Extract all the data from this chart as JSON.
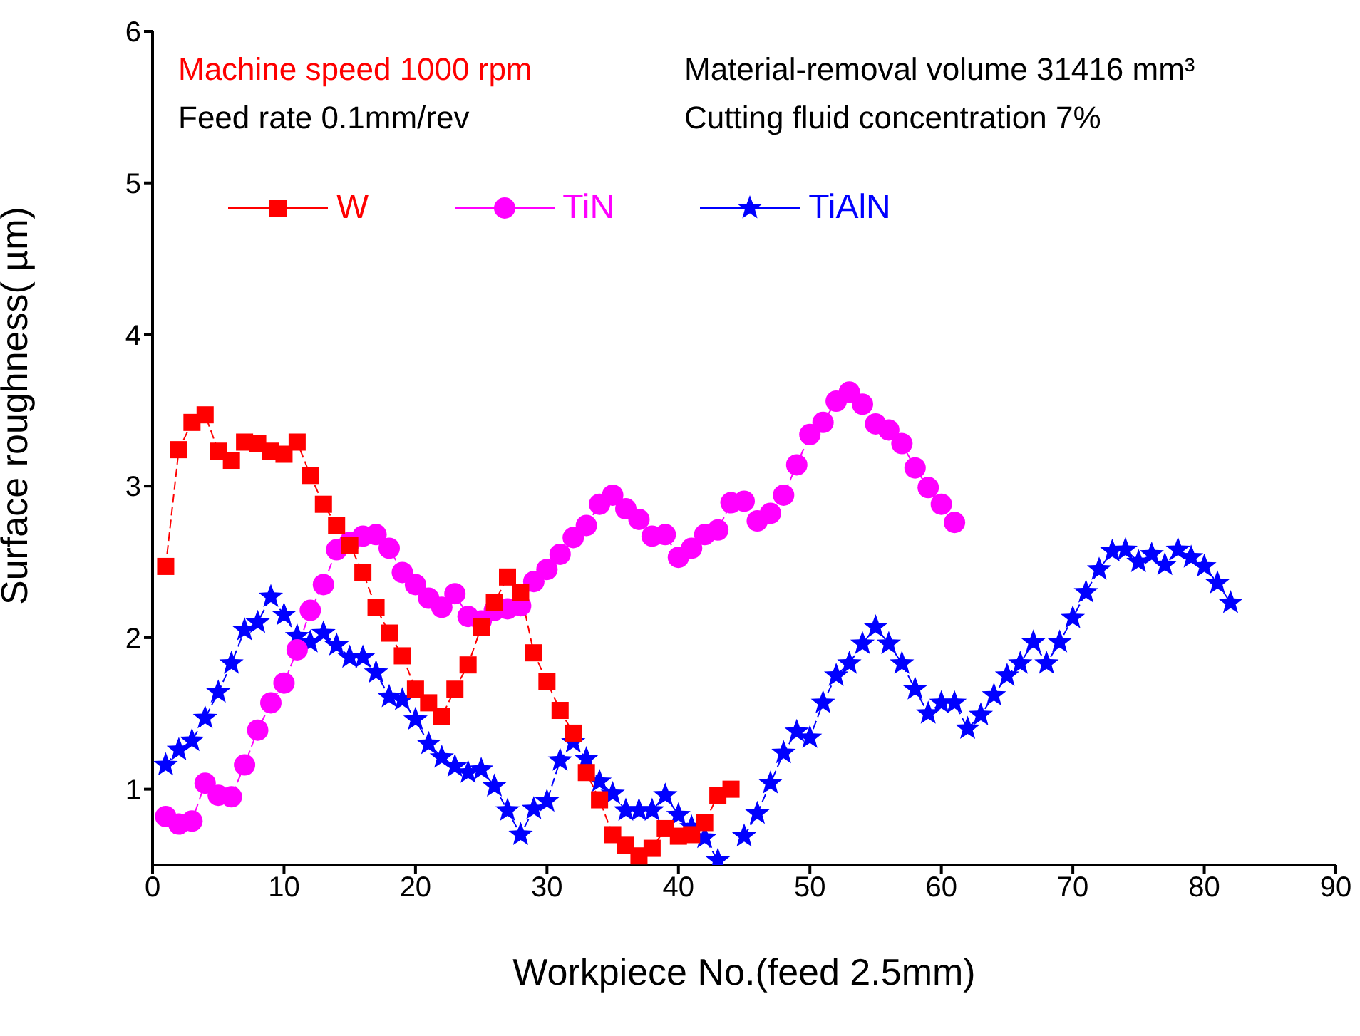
{
  "chart_data": {
    "type": "line",
    "xlabel": "Workpiece No.(feed 2.5mm)",
    "ylabel": "Surface roughness( µm)",
    "xlim": [
      0,
      90
    ],
    "xticks": [
      0,
      10,
      20,
      30,
      40,
      50,
      60,
      70,
      80,
      90
    ],
    "ylim": [
      0.5,
      6
    ],
    "yticks": [
      1,
      2,
      3,
      4,
      5,
      6
    ],
    "grid": false,
    "legend": "top left",
    "line_style": "dashed",
    "annotations": [
      "Machine speed 1000 rpm",
      "Material-removal volume 31416  mm³",
      "Feed rate 0.1mm/rev",
      "Cutting fluid concentration 7%"
    ],
    "series": [
      {
        "name": "W",
        "color": "#ff0000",
        "marker": "square",
        "x": [
          1,
          2,
          3,
          4,
          5,
          6,
          7,
          8,
          9,
          10,
          11,
          12,
          13,
          14,
          15,
          16,
          17,
          18,
          19,
          20,
          21,
          22,
          23,
          24,
          25,
          26,
          27,
          28,
          29,
          30,
          31,
          32,
          33,
          34,
          35,
          36,
          37,
          38,
          39,
          40,
          41,
          42,
          43,
          44
        ],
        "values": [
          2.47,
          3.24,
          3.42,
          3.47,
          3.23,
          3.17,
          3.29,
          3.28,
          3.23,
          3.21,
          3.29,
          3.07,
          2.88,
          2.74,
          2.61,
          2.43,
          2.2,
          2.03,
          1.88,
          1.66,
          1.57,
          1.48,
          1.66,
          1.82,
          2.07,
          2.23,
          2.4,
          2.3,
          1.9,
          1.71,
          1.52,
          1.37,
          1.11,
          0.93,
          0.7,
          0.63,
          0.56,
          0.61,
          0.74,
          0.69,
          0.7,
          0.78,
          0.96,
          1.0
        ]
      },
      {
        "name": "TiN",
        "color": "#ff00ff",
        "marker": "circle",
        "x": [
          1,
          2,
          3,
          4,
          5,
          6,
          7,
          8,
          9,
          10,
          11,
          12,
          13,
          14,
          15,
          16,
          17,
          18,
          19,
          20,
          21,
          22,
          23,
          24,
          25,
          26,
          27,
          28,
          29,
          30,
          31,
          32,
          33,
          34,
          35,
          36,
          37,
          38,
          39,
          40,
          41,
          42,
          43,
          44,
          45,
          46,
          47,
          48,
          49,
          50,
          51,
          52,
          53,
          54,
          55,
          56,
          57,
          58,
          59,
          60,
          61
        ],
        "values": [
          0.82,
          0.77,
          0.79,
          1.04,
          0.96,
          0.95,
          1.16,
          1.39,
          1.57,
          1.7,
          1.92,
          2.18,
          2.35,
          2.58,
          2.63,
          2.67,
          2.68,
          2.59,
          2.43,
          2.35,
          2.26,
          2.2,
          2.29,
          2.14,
          2.11,
          2.18,
          2.19,
          2.21,
          2.37,
          2.45,
          2.55,
          2.66,
          2.74,
          2.88,
          2.94,
          2.85,
          2.78,
          2.67,
          2.68,
          2.53,
          2.59,
          2.68,
          2.71,
          2.89,
          2.9,
          2.77,
          2.82,
          2.94,
          3.14,
          3.34,
          3.42,
          3.56,
          3.62,
          3.54,
          3.41,
          3.37,
          3.28,
          3.12,
          2.99,
          2.88,
          2.76
        ]
      },
      {
        "name": "TiAlN",
        "color": "#0000ff",
        "marker": "star",
        "x": [
          1,
          2,
          3,
          4,
          5,
          6,
          7,
          8,
          9,
          10,
          11,
          12,
          13,
          14,
          15,
          16,
          17,
          18,
          19,
          20,
          21,
          22,
          23,
          24,
          25,
          26,
          27,
          28,
          29,
          30,
          31,
          32,
          33,
          34,
          35,
          36,
          37,
          38,
          39,
          40,
          41,
          42,
          43,
          44,
          45,
          46,
          47,
          48,
          49,
          50,
          51,
          52,
          53,
          54,
          55,
          56,
          57,
          58,
          59,
          60,
          61,
          62,
          63,
          64,
          65,
          66,
          67,
          68,
          69,
          70,
          71,
          72,
          73,
          74,
          75,
          76,
          77,
          78,
          79,
          80,
          81,
          82
        ],
        "values": [
          1.16,
          1.26,
          1.32,
          1.47,
          1.64,
          1.83,
          2.05,
          2.1,
          2.27,
          2.15,
          2.01,
          1.97,
          2.03,
          1.95,
          1.87,
          1.87,
          1.77,
          1.61,
          1.59,
          1.46,
          1.3,
          1.21,
          1.15,
          1.11,
          1.13,
          1.02,
          0.86,
          0.7,
          0.87,
          0.92,
          1.19,
          1.31,
          1.2,
          1.05,
          0.97,
          0.86,
          0.86,
          0.86,
          0.96,
          0.83,
          0.75,
          0.68,
          0.53,
          null,
          0.69,
          0.84,
          1.04,
          1.24,
          1.38,
          1.34,
          1.57,
          1.75,
          1.83,
          1.96,
          2.07,
          1.96,
          1.83,
          1.66,
          1.5,
          1.57,
          1.57,
          1.4,
          1.49,
          1.62,
          1.75,
          1.83,
          1.97,
          1.83,
          1.97,
          2.13,
          2.3,
          2.45,
          2.57,
          2.58,
          2.5,
          2.55,
          2.48,
          2.58,
          2.53,
          2.47,
          2.36,
          2.23
        ]
      }
    ]
  }
}
